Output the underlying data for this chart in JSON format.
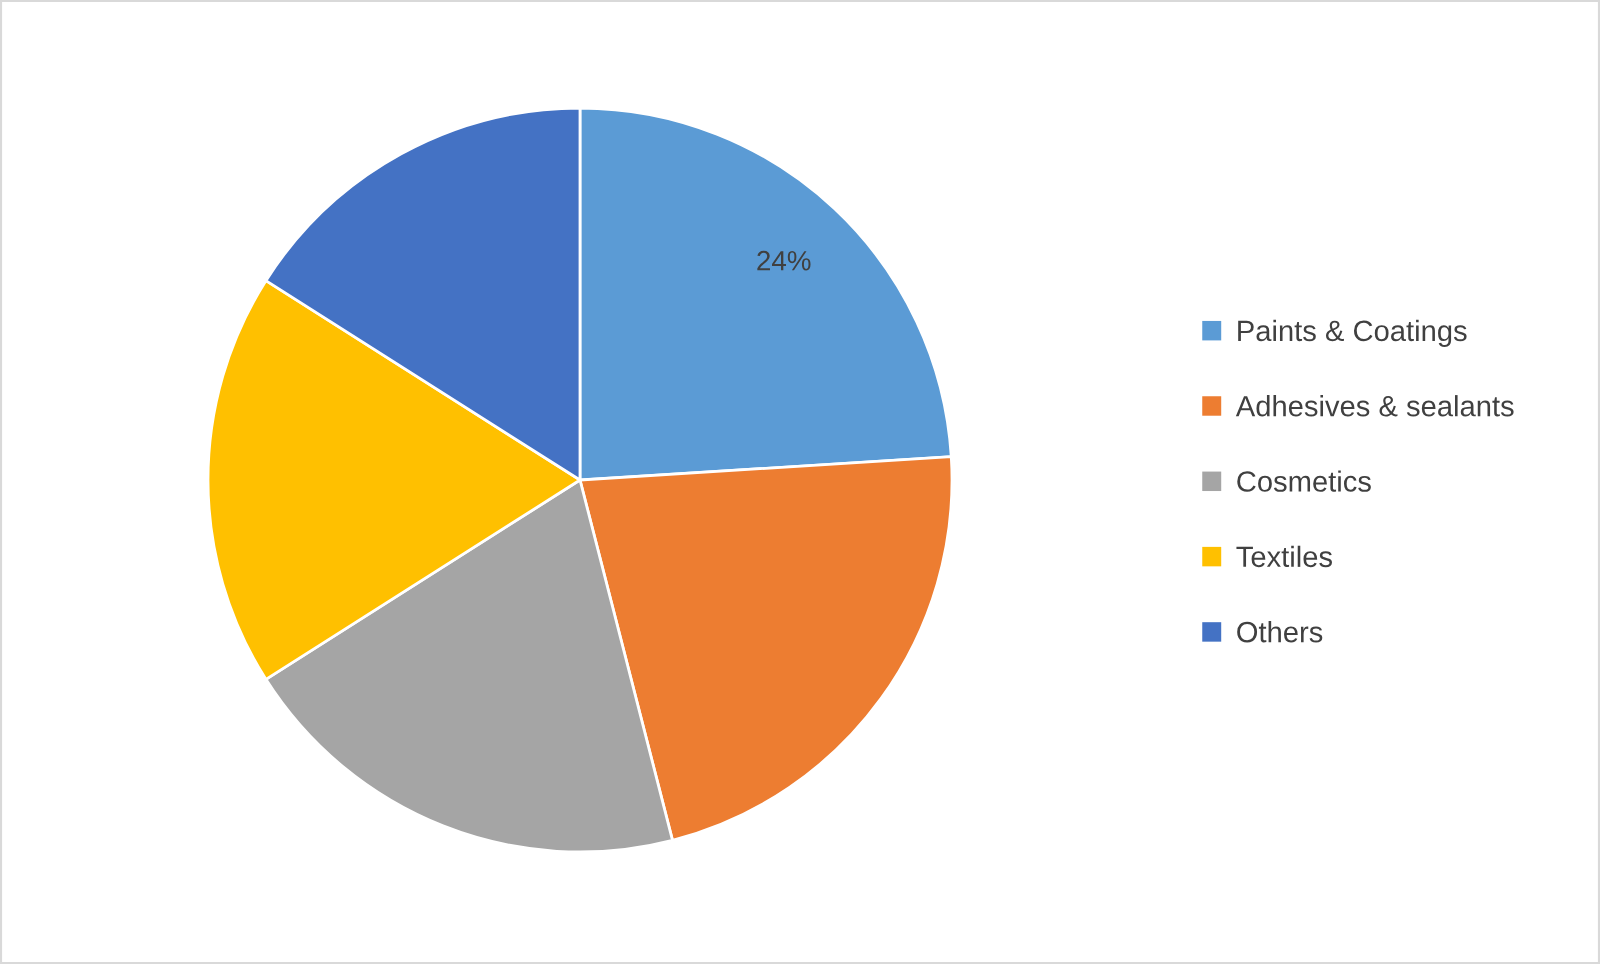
{
  "chart_data": {
    "type": "pie",
    "categories": [
      "Paints & Coatings",
      "Adhesives & sealants",
      "Cosmetics",
      "Textiles",
      "Others"
    ],
    "values": [
      24,
      22,
      20,
      18,
      16
    ],
    "colors": [
      "#5b9bd5",
      "#ed7d31",
      "#a5a5a5",
      "#ffc000",
      "#4472c4"
    ],
    "value_labels": [
      "24%",
      null,
      null,
      null,
      null
    ],
    "legend": "right"
  }
}
